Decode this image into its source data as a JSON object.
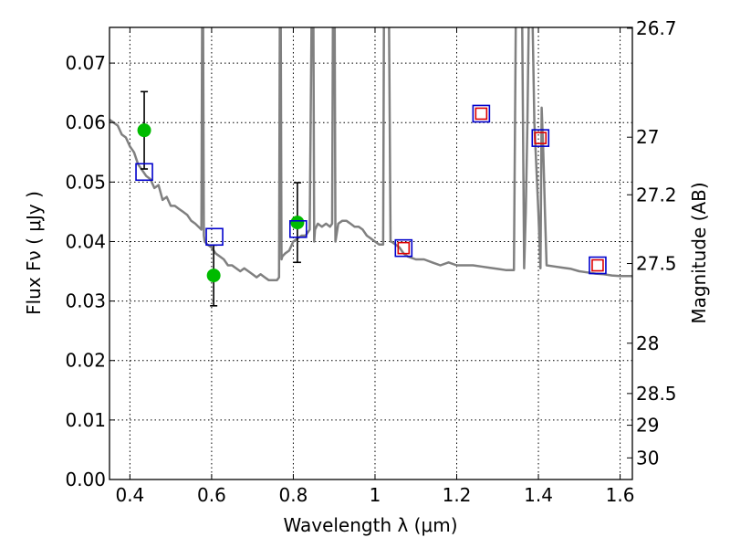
{
  "chart_data": {
    "type": "line",
    "xlabel": "Wavelength  λ (μm)",
    "ylabel": "Flux  Fν  ( μJy )",
    "ylabel_right": "Magnitude (AB)",
    "xlim": [
      0.35,
      1.63
    ],
    "ylim": [
      0.0,
      0.076
    ],
    "grid": true,
    "x_ticks": [
      0.4,
      0.6,
      0.8,
      1.0,
      1.2,
      1.4,
      1.6
    ],
    "x_tick_labels": [
      "0.4",
      "0.6",
      "0.8",
      "1",
      "1.2",
      "1.4",
      "1.6"
    ],
    "y_ticks": [
      0.0,
      0.01,
      0.02,
      0.03,
      0.04,
      0.05,
      0.06,
      0.07
    ],
    "y_tick_labels": [
      "0.00",
      "0.01",
      "0.02",
      "0.03",
      "0.04",
      "0.05",
      "0.06",
      "0.07"
    ],
    "right_ticks": [
      26.7,
      27,
      27.2,
      27.5,
      28,
      28.5,
      29,
      30
    ],
    "right_tick_labels": [
      "26.7",
      "27",
      "27.2",
      "27.5",
      "28",
      "28.5",
      "29",
      "30"
    ],
    "colors": {
      "model": "#808080",
      "observed": "#00bb00",
      "synthetic_square": "#0000cc",
      "model_square": "#dd0000",
      "errorbar": "#000000",
      "grid": "#000000"
    },
    "series": [
      {
        "name": "model spectrum",
        "kind": "line",
        "x": [
          0.35,
          0.36,
          0.37,
          0.38,
          0.39,
          0.4,
          0.41,
          0.42,
          0.43,
          0.44,
          0.45,
          0.46,
          0.47,
          0.48,
          0.49,
          0.5,
          0.51,
          0.52,
          0.53,
          0.54,
          0.55,
          0.56,
          0.575,
          0.577,
          0.579,
          0.581,
          0.583,
          0.59,
          0.6,
          0.61,
          0.62,
          0.63,
          0.64,
          0.65,
          0.66,
          0.67,
          0.68,
          0.69,
          0.7,
          0.71,
          0.72,
          0.73,
          0.74,
          0.75,
          0.76,
          0.765,
          0.767,
          0.769,
          0.771,
          0.773,
          0.78,
          0.79,
          0.8,
          0.81,
          0.82,
          0.83,
          0.84,
          0.845,
          0.847,
          0.849,
          0.851,
          0.853,
          0.86,
          0.87,
          0.88,
          0.89,
          0.895,
          0.897,
          0.899,
          0.901,
          0.903,
          0.91,
          0.92,
          0.93,
          0.94,
          0.95,
          0.96,
          0.97,
          0.98,
          0.99,
          1.0,
          1.01,
          1.02,
          1.022,
          1.026,
          1.03,
          1.034,
          1.038,
          1.04,
          1.05,
          1.06,
          1.07,
          1.08,
          1.1,
          1.12,
          1.14,
          1.16,
          1.18,
          1.2,
          1.22,
          1.24,
          1.26,
          1.28,
          1.3,
          1.32,
          1.34,
          1.345,
          1.349,
          1.353,
          1.36,
          1.365,
          1.369,
          1.373,
          1.377,
          1.38,
          1.385,
          1.39,
          1.4,
          1.405,
          1.408,
          1.412,
          1.416,
          1.42,
          1.44,
          1.46,
          1.48,
          1.5,
          1.52,
          1.54,
          1.56,
          1.58,
          1.6,
          1.63
        ],
        "y": [
          0.0605,
          0.06,
          0.0595,
          0.058,
          0.0575,
          0.056,
          0.055,
          0.053,
          0.052,
          0.051,
          0.0505,
          0.049,
          0.0495,
          0.047,
          0.0475,
          0.046,
          0.046,
          0.0455,
          0.045,
          0.0445,
          0.0435,
          0.043,
          0.042,
          0.08,
          0.08,
          0.041,
          0.04,
          0.0395,
          0.039,
          0.038,
          0.0375,
          0.037,
          0.036,
          0.036,
          0.0355,
          0.035,
          0.0355,
          0.035,
          0.0345,
          0.034,
          0.0345,
          0.034,
          0.0335,
          0.0335,
          0.0335,
          0.034,
          0.08,
          0.08,
          0.037,
          0.0375,
          0.038,
          0.0385,
          0.04,
          0.0405,
          0.041,
          0.041,
          0.042,
          0.08,
          0.08,
          0.08,
          0.04,
          0.042,
          0.043,
          0.0425,
          0.043,
          0.0425,
          0.043,
          0.08,
          0.08,
          0.08,
          0.04,
          0.043,
          0.0435,
          0.0435,
          0.043,
          0.0425,
          0.0425,
          0.042,
          0.041,
          0.0405,
          0.04,
          0.0395,
          0.0395,
          0.08,
          0.08,
          0.08,
          0.08,
          0.04,
          0.04,
          0.0395,
          0.039,
          0.038,
          0.0375,
          0.037,
          0.037,
          0.0365,
          0.036,
          0.0365,
          0.036,
          0.036,
          0.036,
          0.0358,
          0.0356,
          0.0354,
          0.0352,
          0.0352,
          0.08,
          0.08,
          0.08,
          0.08,
          0.0355,
          0.045,
          0.06,
          0.08,
          0.08,
          0.08,
          0.06,
          0.045,
          0.0355,
          0.0625,
          0.055,
          0.045,
          0.036,
          0.0358,
          0.0356,
          0.0354,
          0.035,
          0.0348,
          0.0346,
          0.0345,
          0.0343,
          0.0342,
          0.0342
        ]
      },
      {
        "name": "observed photometry",
        "kind": "points-with-errorbars",
        "x": [
          0.435,
          0.605,
          0.81
        ],
        "y": [
          0.0587,
          0.0343,
          0.0432
        ],
        "yerr_low": [
          0.0522,
          0.0292,
          0.0365
        ],
        "yerr_high": [
          0.0652,
          0.0394,
          0.0499
        ]
      },
      {
        "name": "synthetic photometry (blue squares)",
        "kind": "open-squares",
        "x": [
          0.435,
          0.607,
          0.812,
          1.07,
          1.26,
          1.405,
          1.545
        ],
        "y": [
          0.0517,
          0.0408,
          0.0421,
          0.0389,
          0.0615,
          0.0574,
          0.036
        ]
      },
      {
        "name": "model photometry (red squares)",
        "kind": "open-squares",
        "x": [
          1.07,
          1.26,
          1.405,
          1.545
        ],
        "y": [
          0.0389,
          0.0615,
          0.0574,
          0.036
        ]
      }
    ]
  }
}
